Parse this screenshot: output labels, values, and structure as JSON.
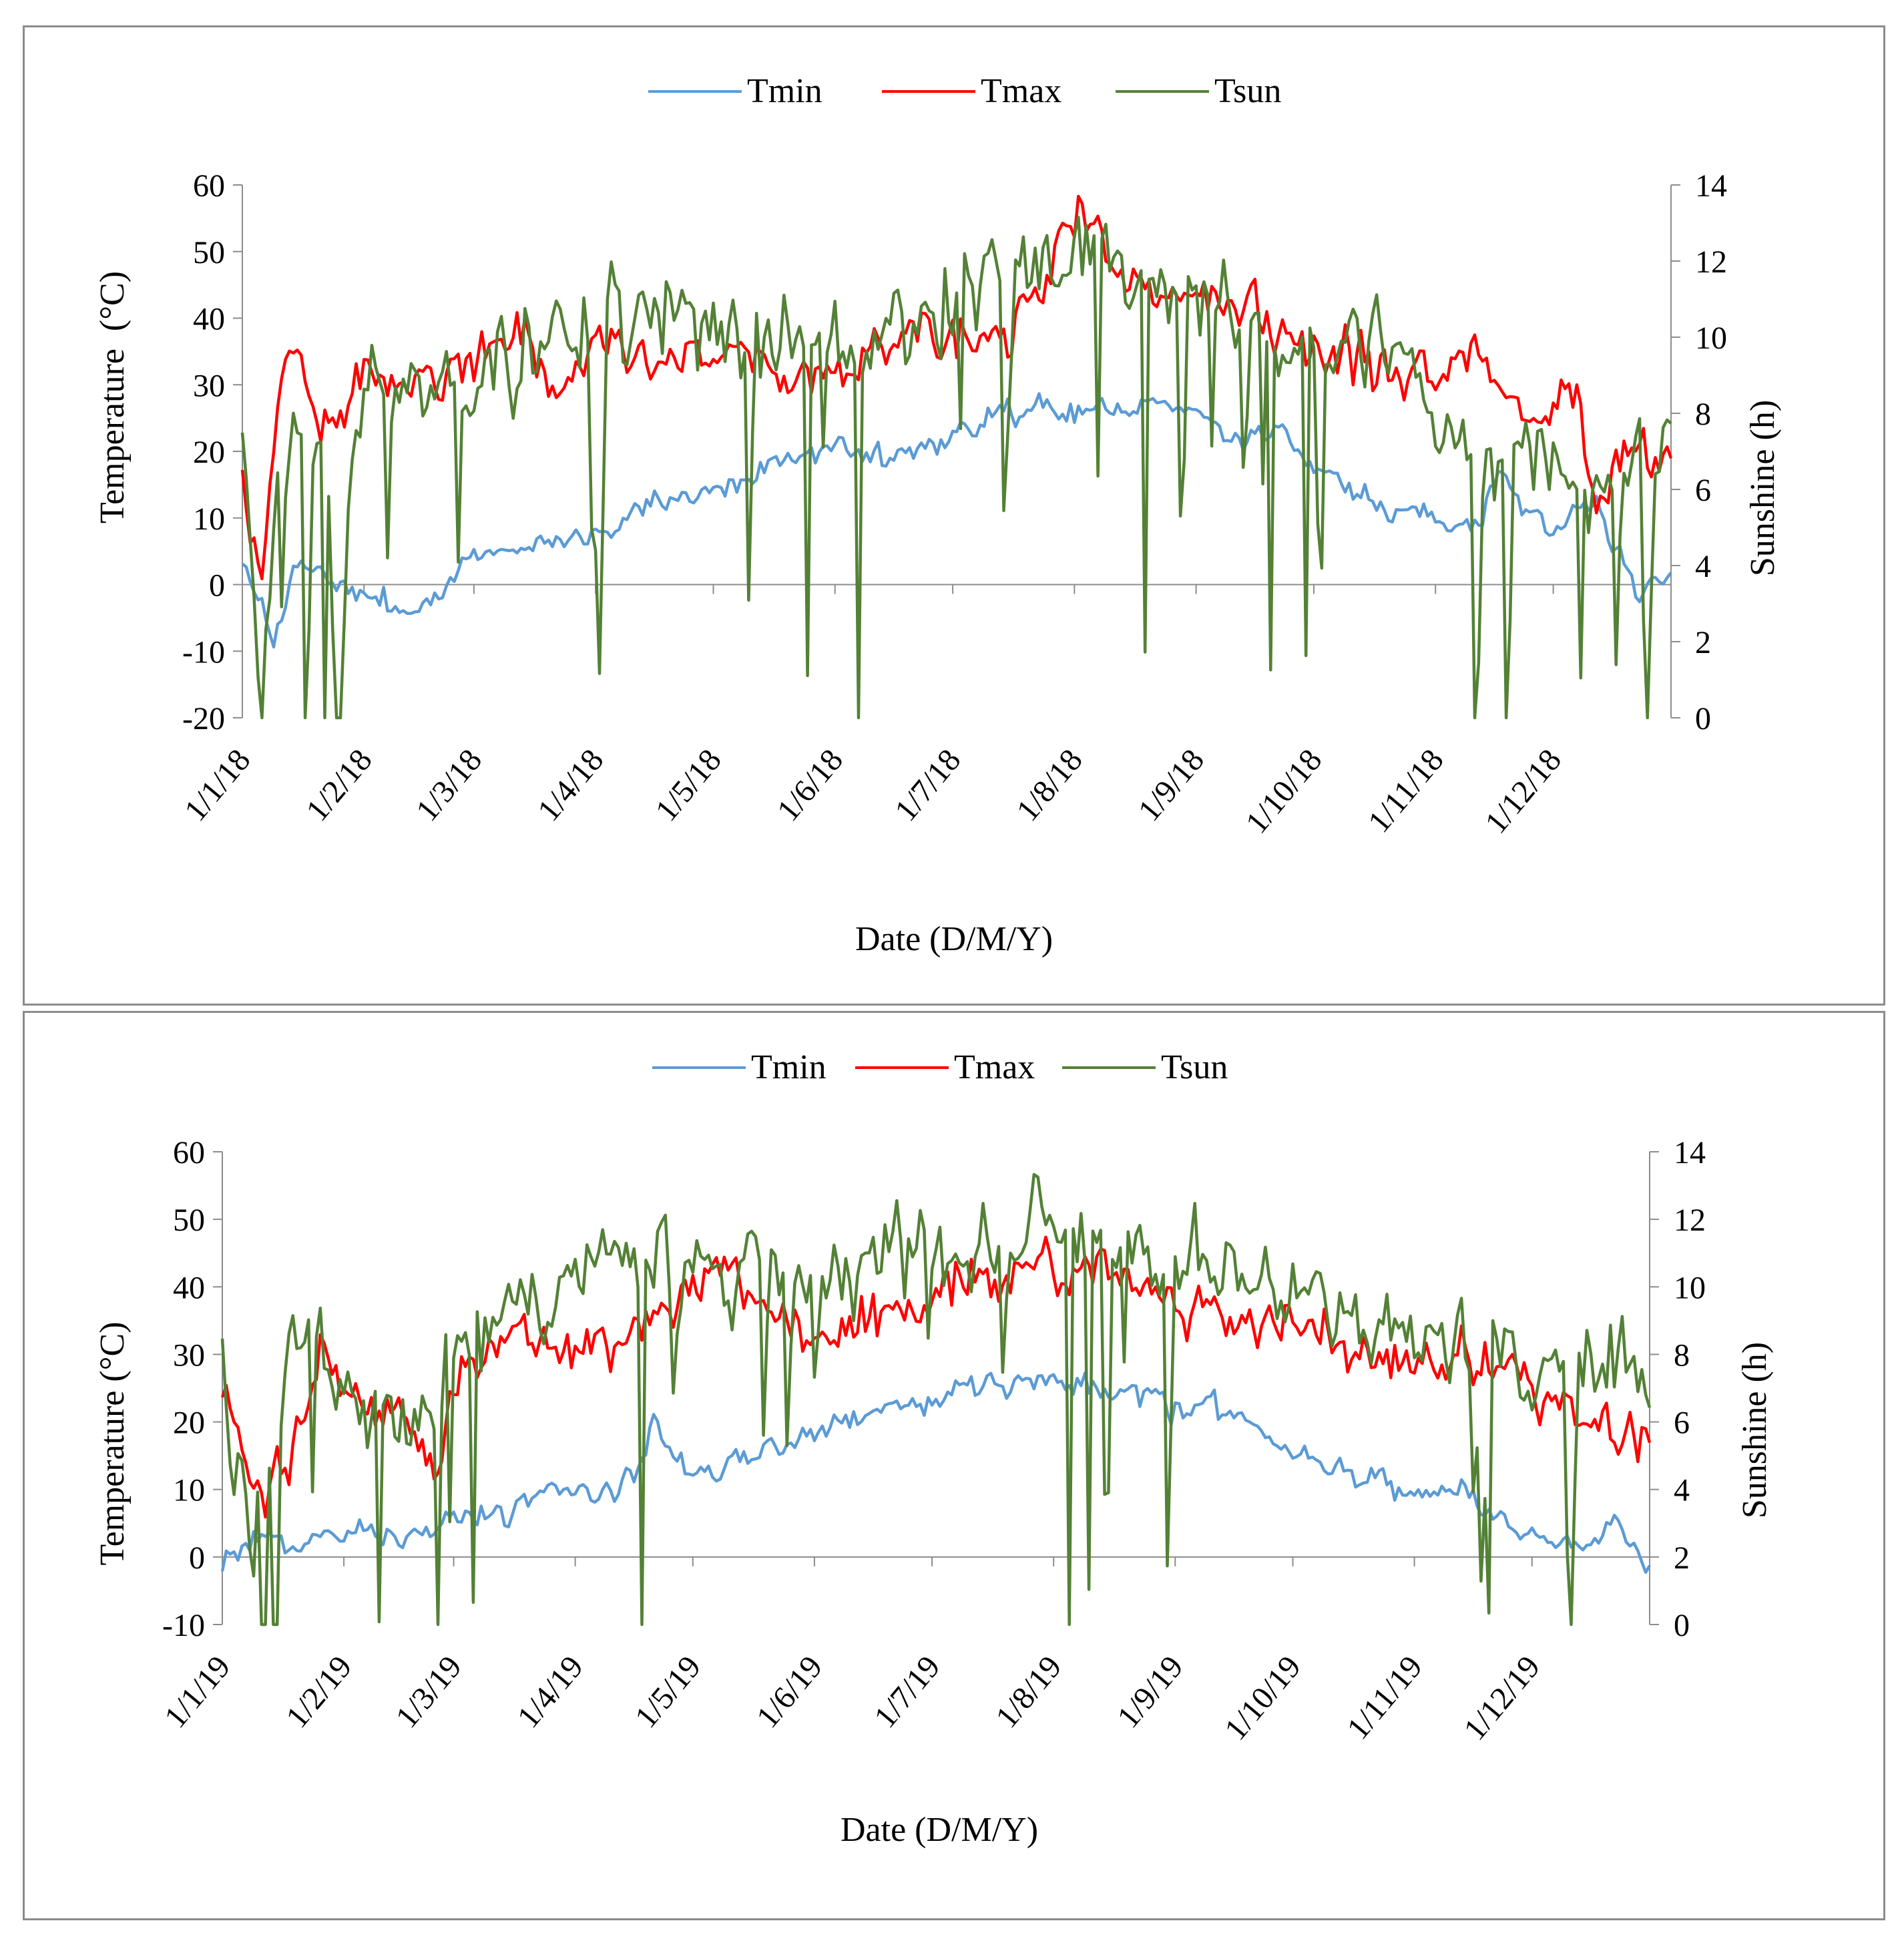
{
  "colors": {
    "tmin": "#5b9bd5",
    "tmax": "#ff0000",
    "tsun": "#538135",
    "axis": "#8c8c8c",
    "frame": "#8c8c8c"
  },
  "chart_data": [
    {
      "type": "line",
      "year": 2018,
      "days": 365,
      "legend": [
        "Tmin",
        "Tmax",
        "Tsun"
      ],
      "legend_position": "top-center",
      "xlabel": "Date (D/M/Y)",
      "ylabel": "Temperature  (°C)",
      "y2label": "Sunshine (h)",
      "ylim": [
        -20,
        60
      ],
      "y_ticks": [
        "60",
        "50",
        "40",
        "30",
        "20",
        "10",
        "0",
        "-10",
        "-20"
      ],
      "y2lim": [
        0,
        14
      ],
      "y2_ticks": [
        "14",
        "12",
        "10",
        "8",
        "6",
        "4",
        "2",
        "0"
      ],
      "x_tick_labels": [
        "1/1/18",
        "1/2/18",
        "1/3/18",
        "1/4/18",
        "1/5/18",
        "1/6/18",
        "1/7/18",
        "1/8/18",
        "1/9/18",
        "1/10/18",
        "1/11/18",
        "1/12/18"
      ],
      "x_tick_days": [
        0,
        31,
        59,
        90,
        120,
        151,
        181,
        212,
        243,
        273,
        304,
        334
      ],
      "series": [
        {
          "name": "Tmin",
          "axis": "left",
          "anchors": [
            [
              0,
              3
            ],
            [
              8,
              -8
            ],
            [
              14,
              4
            ],
            [
              31,
              -2
            ],
            [
              45,
              -4
            ],
            [
              59,
              4
            ],
            [
              75,
              6
            ],
            [
              90,
              8
            ],
            [
              105,
              13
            ],
            [
              120,
              14
            ],
            [
              135,
              18
            ],
            [
              151,
              21
            ],
            [
              165,
              19
            ],
            [
              181,
              23
            ],
            [
              195,
              26
            ],
            [
              212,
              26
            ],
            [
              225,
              27
            ],
            [
              235,
              27
            ],
            [
              243,
              26
            ],
            [
              255,
              21
            ],
            [
              265,
              23
            ],
            [
              273,
              18
            ],
            [
              290,
              12
            ],
            [
              304,
              10
            ],
            [
              315,
              8
            ],
            [
              320,
              16
            ],
            [
              334,
              8
            ],
            [
              345,
              12
            ],
            [
              355,
              -2
            ],
            [
              364,
              2
            ]
          ],
          "noise": 2.2
        },
        {
          "name": "Tmax",
          "axis": "left",
          "anchors": [
            [
              0,
              16
            ],
            [
              5,
              4
            ],
            [
              10,
              32
            ],
            [
              15,
              36
            ],
            [
              20,
              20
            ],
            [
              31,
              30
            ],
            [
              45,
              30
            ],
            [
              59,
              33
            ],
            [
              70,
              38
            ],
            [
              80,
              30
            ],
            [
              90,
              38
            ],
            [
              105,
              35
            ],
            [
              120,
              34
            ],
            [
              135,
              32
            ],
            [
              151,
              32
            ],
            [
              165,
              35
            ],
            [
              181,
              36
            ],
            [
              195,
              38
            ],
            [
              205,
              47
            ],
            [
              212,
              55
            ],
            [
              222,
              50
            ],
            [
              232,
              45
            ],
            [
              243,
              46
            ],
            [
              255,
              40
            ],
            [
              273,
              36
            ],
            [
              290,
              33
            ],
            [
              304,
              30
            ],
            [
              315,
              33
            ],
            [
              330,
              24
            ],
            [
              340,
              30
            ],
            [
              345,
              12
            ],
            [
              355,
              22
            ],
            [
              364,
              20
            ]
          ],
          "noise": 4.5
        },
        {
          "name": "Tsun",
          "axis": "right",
          "anchors": [
            [
              0,
              8
            ],
            [
              5,
              0
            ],
            [
              10,
              8
            ],
            [
              20,
              7
            ],
            [
              31,
              8
            ],
            [
              45,
              9
            ],
            [
              59,
              8.5
            ],
            [
              75,
              9.5
            ],
            [
              90,
              10.5
            ],
            [
              105,
              10.5
            ],
            [
              120,
              10
            ],
            [
              135,
              10
            ],
            [
              151,
              10
            ],
            [
              165,
              10
            ],
            [
              181,
              11
            ],
            [
              195,
              11.5
            ],
            [
              212,
              12
            ],
            [
              225,
              11.5
            ],
            [
              243,
              11
            ],
            [
              255,
              10.5
            ],
            [
              273,
              10
            ],
            [
              290,
              10
            ],
            [
              304,
              8.5
            ],
            [
              315,
              6
            ],
            [
              330,
              7
            ],
            [
              345,
              5
            ],
            [
              355,
              7
            ],
            [
              364,
              7
            ]
          ],
          "noise": 1.4,
          "dips": 36
        }
      ]
    },
    {
      "type": "line",
      "year": 2019,
      "days": 365,
      "legend": [
        "Tmin",
        "Tmax",
        "Tsun"
      ],
      "legend_position": "top-center",
      "xlabel": "Date (D/M/Y)",
      "ylabel": "Temperature (°C)",
      "y2label": "Sunshine (h)",
      "ylim": [
        -10,
        60
      ],
      "y_ticks": [
        "60",
        "50",
        "40",
        "30",
        "20",
        "10",
        "0",
        "-10"
      ],
      "y2lim": [
        0,
        14
      ],
      "y2_ticks": [
        "14",
        "12",
        "10",
        "8",
        "6",
        "4",
        "2",
        "0"
      ],
      "x_tick_labels": [
        "1/1/19",
        "1/2/19",
        "1/3/19",
        "1/4/19",
        "1/5/19",
        "1/6/19",
        "1/7/19",
        "1/8/19",
        "1/9/19",
        "1/10/19",
        "1/11/19",
        "1/12/19"
      ],
      "x_tick_days": [
        0,
        31,
        59,
        90,
        120,
        151,
        181,
        212,
        243,
        273,
        304,
        334
      ],
      "series": [
        {
          "name": "Tmin",
          "axis": "left",
          "anchors": [
            [
              0,
              0
            ],
            [
              10,
              3
            ],
            [
              20,
              2
            ],
            [
              31,
              4
            ],
            [
              45,
              3
            ],
            [
              59,
              5
            ],
            [
              75,
              7
            ],
            [
              90,
              10
            ],
            [
              105,
              11
            ],
            [
              110,
              20
            ],
            [
              120,
              12
            ],
            [
              135,
              16
            ],
            [
              151,
              18
            ],
            [
              165,
              21
            ],
            [
              181,
              23
            ],
            [
              195,
              26
            ],
            [
              212,
              27
            ],
            [
              225,
              25
            ],
            [
              243,
              22
            ],
            [
              258,
              22
            ],
            [
              273,
              16
            ],
            [
              290,
              12
            ],
            [
              304,
              10
            ],
            [
              320,
              8
            ],
            [
              334,
              3
            ],
            [
              345,
              2
            ],
            [
              355,
              5
            ],
            [
              364,
              -3
            ]
          ],
          "noise": 2.2
        },
        {
          "name": "Tmax",
          "axis": "left",
          "anchors": [
            [
              0,
              27
            ],
            [
              8,
              9
            ],
            [
              15,
              12
            ],
            [
              25,
              30
            ],
            [
              31,
              25
            ],
            [
              45,
              20
            ],
            [
              55,
              12
            ],
            [
              59,
              26
            ],
            [
              75,
              32
            ],
            [
              90,
              30
            ],
            [
              105,
              33
            ],
            [
              120,
              38
            ],
            [
              128,
              43
            ],
            [
              140,
              35
            ],
            [
              151,
              32
            ],
            [
              165,
              36
            ],
            [
              181,
              38
            ],
            [
              195,
              40
            ],
            [
              212,
              43
            ],
            [
              225,
              42
            ],
            [
              243,
              38
            ],
            [
              255,
              36
            ],
            [
              273,
              36
            ],
            [
              290,
              30
            ],
            [
              304,
              28
            ],
            [
              315,
              30
            ],
            [
              325,
              28
            ],
            [
              340,
              22
            ],
            [
              355,
              20
            ],
            [
              364,
              18
            ]
          ],
          "noise": 4.5
        },
        {
          "name": "Tsun",
          "axis": "right",
          "anchors": [
            [
              0,
              8
            ],
            [
              8,
              2
            ],
            [
              15,
              6
            ],
            [
              20,
              9
            ],
            [
              31,
              7
            ],
            [
              45,
              5
            ],
            [
              55,
              7
            ],
            [
              59,
              8
            ],
            [
              75,
              9.5
            ],
            [
              90,
              10.5
            ],
            [
              105,
              10.5
            ],
            [
              120,
              11
            ],
            [
              135,
              10.5
            ],
            [
              151,
              10.5
            ],
            [
              165,
              11
            ],
            [
              181,
              11
            ],
            [
              195,
              12
            ],
            [
              212,
              12
            ],
            [
              225,
              11.5
            ],
            [
              243,
              11
            ],
            [
              258,
              10.5
            ],
            [
              273,
              10
            ],
            [
              290,
              9.5
            ],
            [
              304,
              9
            ],
            [
              320,
              8
            ],
            [
              334,
              7
            ],
            [
              345,
              8
            ],
            [
              355,
              7.5
            ],
            [
              364,
              7.5
            ]
          ],
          "noise": 1.5,
          "dips": 30
        }
      ]
    }
  ]
}
